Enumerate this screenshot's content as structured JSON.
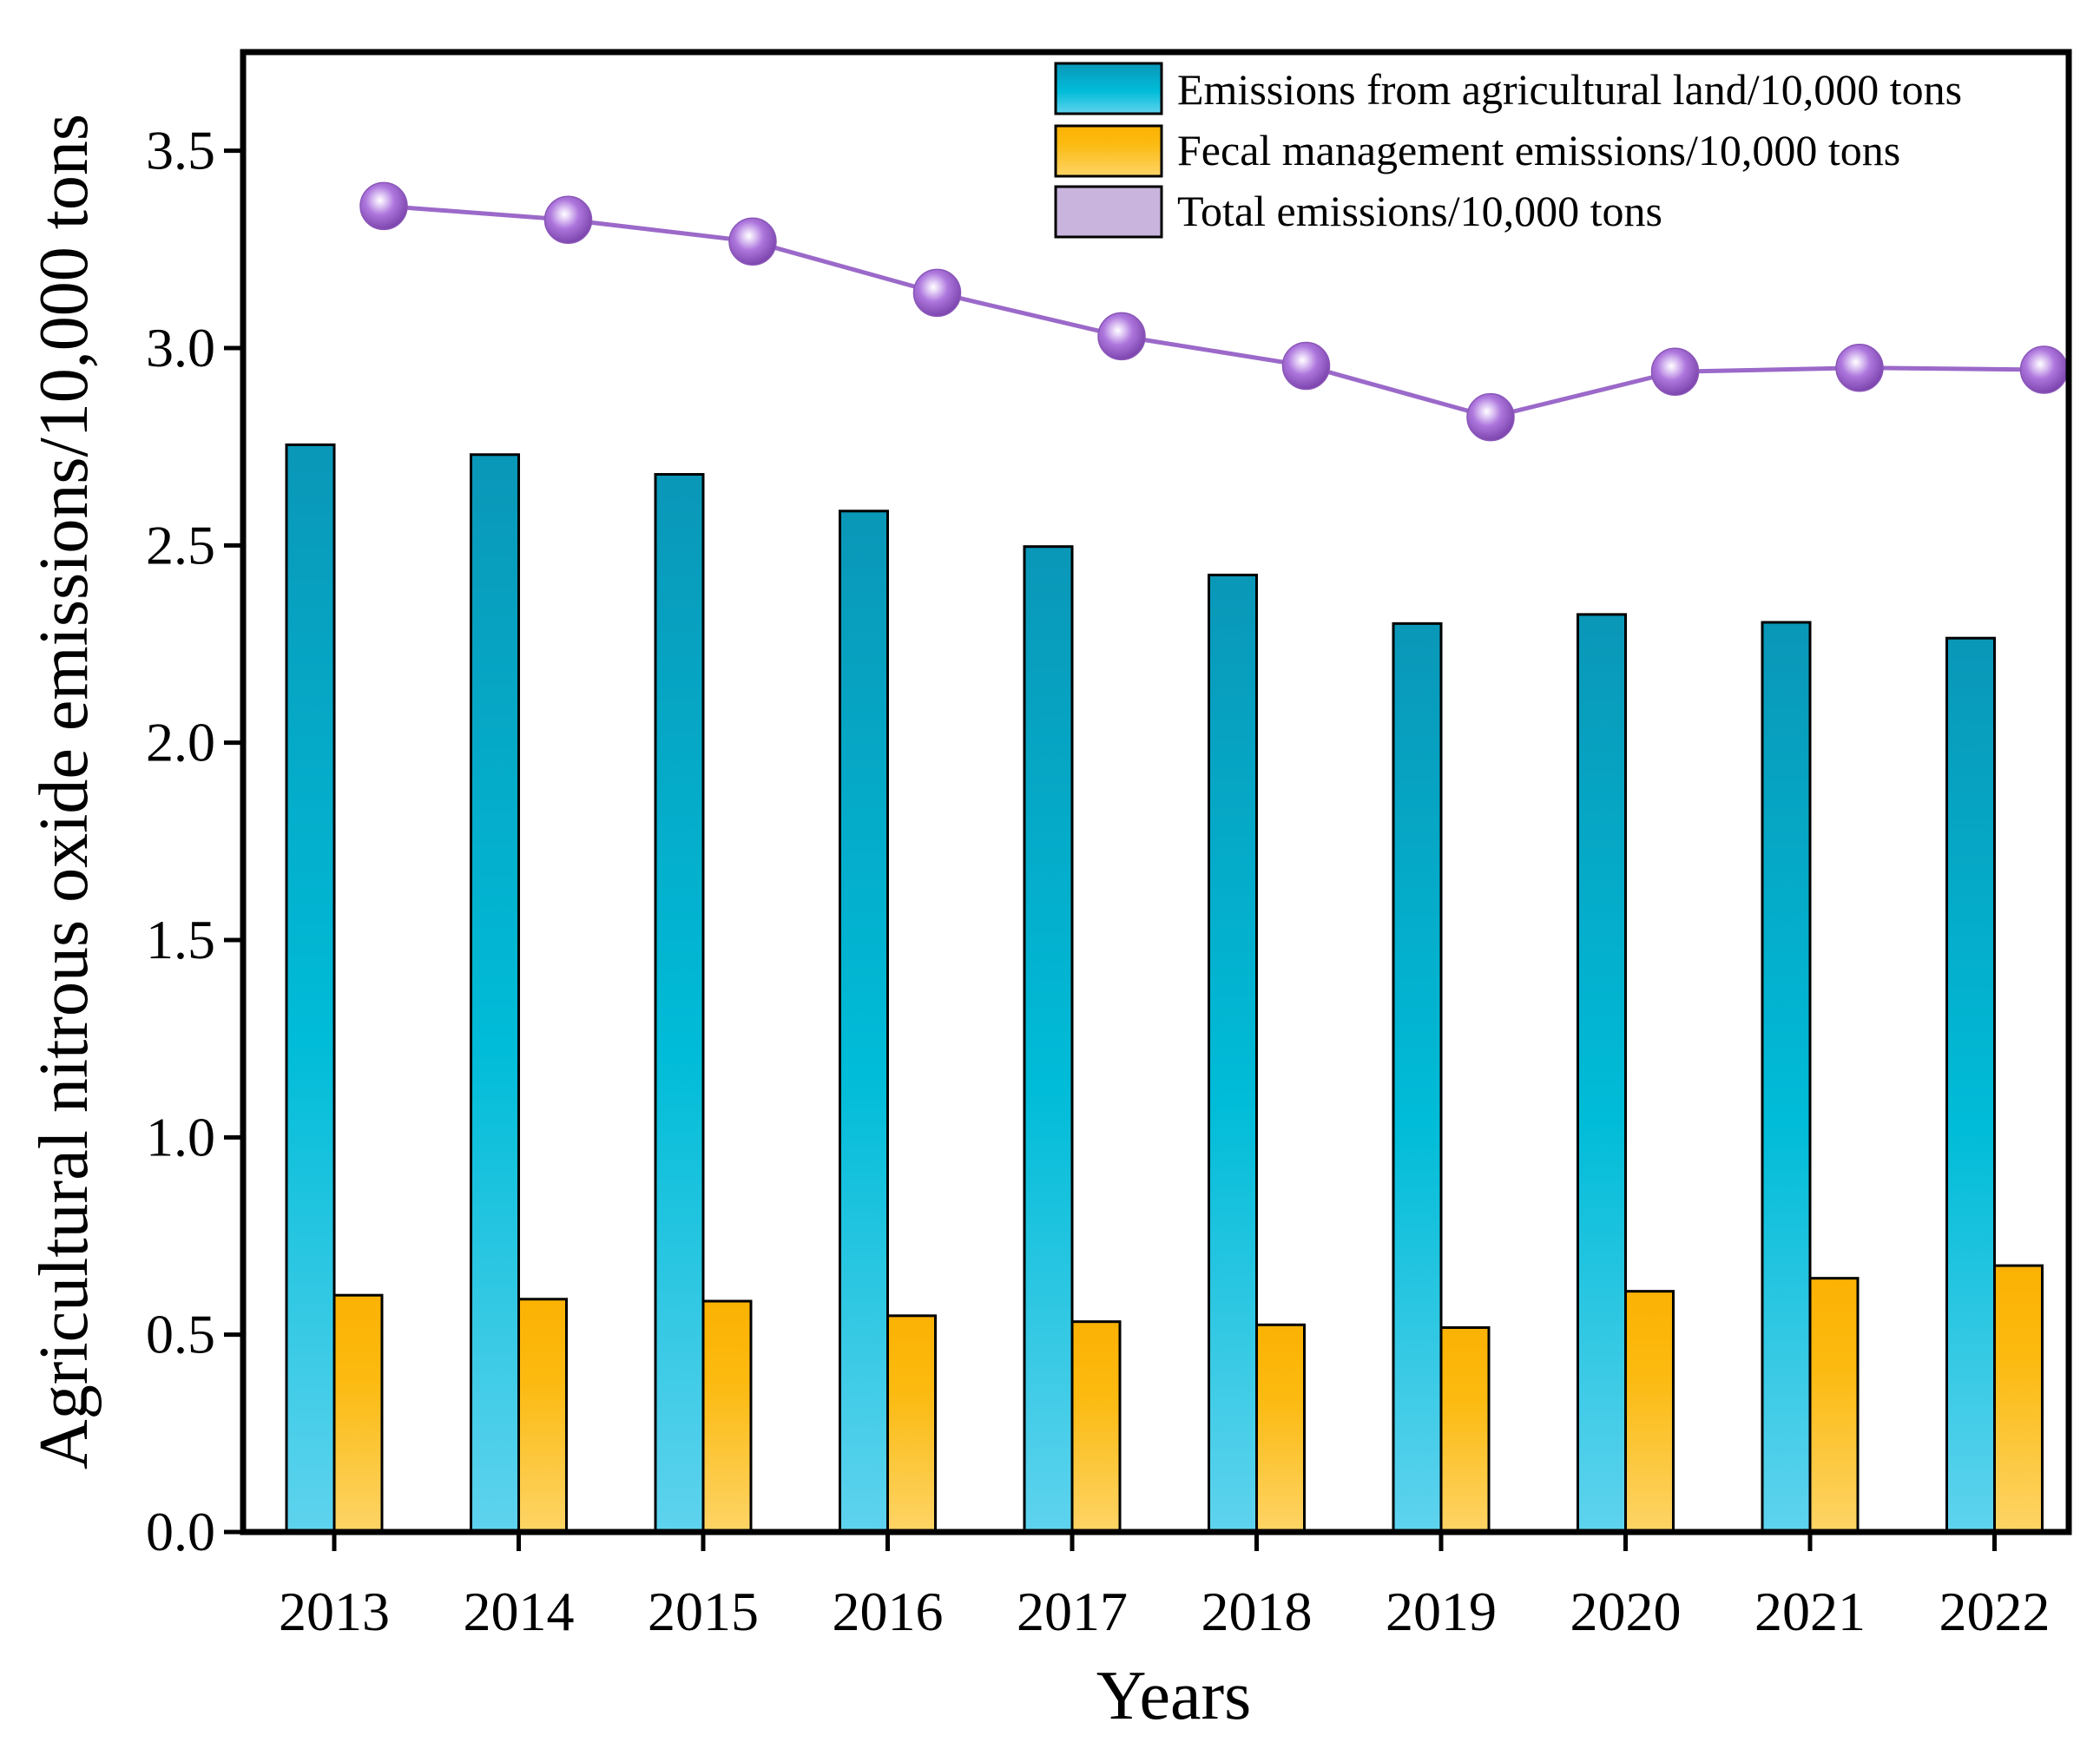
{
  "chart_data": {
    "type": "bar",
    "title": "",
    "xlabel": "Years",
    "ylabel": "Agricultural nitrous oxide emissions/10,000 tons",
    "ylim": [
      0,
      3.75
    ],
    "yticks": [
      "0.0",
      "0.5",
      "1.0",
      "1.5",
      "2.0",
      "2.5",
      "3.0",
      "3.5"
    ],
    "categories": [
      "2013",
      "2014",
      "2015",
      "2016",
      "2017",
      "2018",
      "2019",
      "2020",
      "2021",
      "2022"
    ],
    "series": [
      {
        "name": "Emissions from agricultural land/10,000 tons",
        "kind": "bar",
        "values": [
          2.755,
          2.73,
          2.68,
          2.587,
          2.497,
          2.425,
          2.302,
          2.325,
          2.305,
          2.265
        ]
      },
      {
        "name": "Fecal management emissions/10,000 tons",
        "kind": "bar",
        "values": [
          0.6,
          0.59,
          0.585,
          0.548,
          0.533,
          0.525,
          0.518,
          0.61,
          0.643,
          0.675
        ]
      },
      {
        "name": "Total emissions/10,000 tons",
        "kind": "line",
        "values": [
          3.36,
          3.325,
          3.27,
          3.14,
          3.03,
          2.955,
          2.825,
          2.94,
          2.95,
          2.945
        ]
      }
    ],
    "legend_position": "top-right",
    "grid": false
  },
  "colors": {
    "land_top": "#0a97b8",
    "land_mid": "#00bcd8",
    "land_bottom": "#5fd3ee",
    "fecal_top": "#fbb203",
    "fecal_bottom": "#fdd466",
    "line": "#9b69c9",
    "marker": "#a36ad6",
    "legend_total": "#c8b4dc"
  }
}
